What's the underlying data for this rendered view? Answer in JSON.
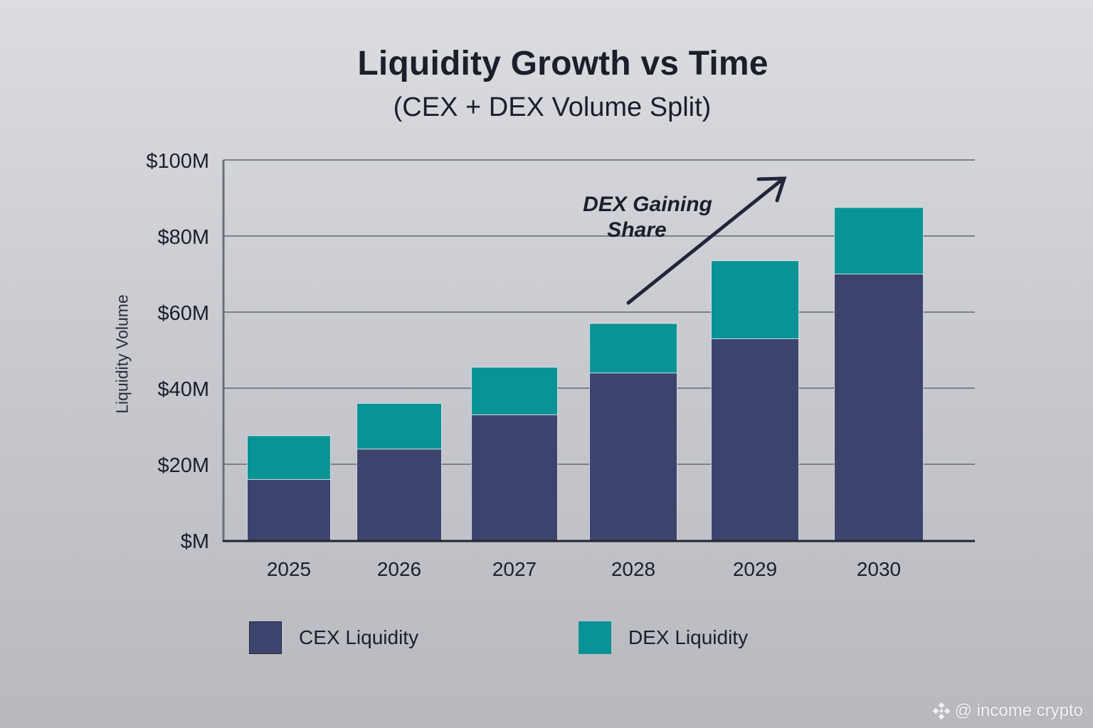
{
  "chart_data": {
    "type": "bar",
    "stacked": true,
    "title": "Liquidity Growth vs Time",
    "subtitle": "(CEX + DEX Volume Split)",
    "xlabel": "",
    "ylabel": "Liquidity Volume",
    "categories": [
      "2025",
      "2026",
      "2027",
      "2028",
      "2029",
      "2030"
    ],
    "series": [
      {
        "name": "CEX Liquidity",
        "color": "#3c446e",
        "values": [
          16,
          24,
          33,
          44,
          53,
          70
        ]
      },
      {
        "name": "DEX Liquidity",
        "color": "#0a9396",
        "values": [
          11.5,
          12,
          12.5,
          13,
          20.5,
          17.5
        ]
      }
    ],
    "totals": [
      27.5,
      36,
      45.5,
      57,
      73.5,
      87.5
    ],
    "units": "$M",
    "ylim": [
      0,
      100
    ],
    "yticks": [
      0,
      20,
      40,
      60,
      80,
      100
    ],
    "ytick_labels": [
      "$M",
      "$20M",
      "$40M",
      "$60M",
      "$80M",
      "$100M"
    ],
    "grid": true,
    "legend_position": "bottom",
    "annotation": {
      "text_line1": "DEX Gaining",
      "text_line2": "Share",
      "arrow": "up-right trend arrow"
    }
  },
  "watermark": {
    "icon": "binance-diamond-icon",
    "text": "@ income crypto"
  }
}
